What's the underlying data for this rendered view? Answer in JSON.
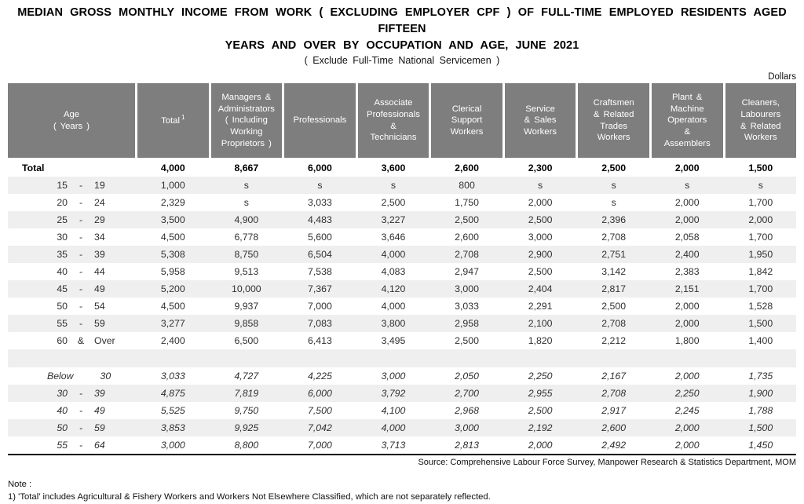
{
  "title": {
    "line1": "MEDIAN GROSS MONTHLY INCOME FROM WORK ( EXCLUDING EMPLOYER CPF ) OF FULL-TIME EMPLOYED RESIDENTS AGED FIFTEEN",
    "line2": "YEARS AND OVER BY OCCUPATION AND AGE, JUNE 2021",
    "subtitle": "( Exclude Full-Time National Servicemen )",
    "unit": "Dollars"
  },
  "table": {
    "columns": [
      {
        "label": "Age\n( Years )"
      },
      {
        "label": "Total",
        "sup": "1"
      },
      {
        "label": "Managers &\nAdministrators\n( Including\nWorking\nProprietors )"
      },
      {
        "label": "Professionals"
      },
      {
        "label": "Associate\nProfessionals\n&\nTechnicians"
      },
      {
        "label": "Clerical\nSupport\nWorkers"
      },
      {
        "label": "Service\n& Sales\nWorkers"
      },
      {
        "label": "Craftsmen\n& Related\nTrades\nWorkers"
      },
      {
        "label": "Plant &\nMachine\nOperators\n&\nAssemblers"
      },
      {
        "label": "Cleaners,\nLabourers\n& Related\nWorkers"
      }
    ],
    "rows": [
      {
        "style": "total",
        "from": "Total",
        "sep": "",
        "to": "",
        "values": [
          "4,000",
          "8,667",
          "6,000",
          "3,600",
          "2,600",
          "2,300",
          "2,500",
          "2,000",
          "1,500"
        ]
      },
      {
        "style": "normal",
        "from": "15",
        "sep": "-",
        "to": "19",
        "values": [
          "1,000",
          "s",
          "s",
          "s",
          "800",
          "s",
          "s",
          "s",
          "s"
        ]
      },
      {
        "style": "normal",
        "from": "20",
        "sep": "-",
        "to": "24",
        "values": [
          "2,329",
          "s",
          "3,033",
          "2,500",
          "1,750",
          "2,000",
          "s",
          "2,000",
          "1,700"
        ]
      },
      {
        "style": "normal",
        "from": "25",
        "sep": "-",
        "to": "29",
        "values": [
          "3,500",
          "4,900",
          "4,483",
          "3,227",
          "2,500",
          "2,500",
          "2,396",
          "2,000",
          "2,000"
        ]
      },
      {
        "style": "normal",
        "from": "30",
        "sep": "-",
        "to": "34",
        "values": [
          "4,500",
          "6,778",
          "5,600",
          "3,646",
          "2,600",
          "3,000",
          "2,708",
          "2,058",
          "1,700"
        ]
      },
      {
        "style": "normal",
        "from": "35",
        "sep": "-",
        "to": "39",
        "values": [
          "5,308",
          "8,750",
          "6,504",
          "4,000",
          "2,708",
          "2,900",
          "2,751",
          "2,400",
          "1,950"
        ]
      },
      {
        "style": "normal",
        "from": "40",
        "sep": "-",
        "to": "44",
        "values": [
          "5,958",
          "9,513",
          "7,538",
          "4,083",
          "2,947",
          "2,500",
          "3,142",
          "2,383",
          "1,842"
        ]
      },
      {
        "style": "normal",
        "from": "45",
        "sep": "-",
        "to": "49",
        "values": [
          "5,200",
          "10,000",
          "7,367",
          "4,120",
          "3,000",
          "2,404",
          "2,817",
          "2,151",
          "1,700"
        ]
      },
      {
        "style": "normal",
        "from": "50",
        "sep": "-",
        "to": "54",
        "values": [
          "4,500",
          "9,937",
          "7,000",
          "4,000",
          "3,033",
          "2,291",
          "2,500",
          "2,000",
          "1,528"
        ]
      },
      {
        "style": "normal",
        "from": "55",
        "sep": "-",
        "to": "59",
        "values": [
          "3,277",
          "9,858",
          "7,083",
          "3,800",
          "2,958",
          "2,100",
          "2,708",
          "2,000",
          "1,500"
        ]
      },
      {
        "style": "normal",
        "from": "60",
        "sep": "&",
        "to": "Over",
        "values": [
          "2,400",
          "6,500",
          "6,413",
          "3,495",
          "2,500",
          "1,820",
          "2,212",
          "1,800",
          "1,400"
        ]
      },
      {
        "style": "spacer",
        "from": "",
        "sep": "",
        "to": "",
        "values": []
      },
      {
        "style": "summary",
        "from": "Below",
        "sep": "",
        "to": "30",
        "values": [
          "3,033",
          "4,727",
          "4,225",
          "3,000",
          "2,050",
          "2,250",
          "2,167",
          "2,000",
          "1,735"
        ]
      },
      {
        "style": "summary",
        "from": "30",
        "sep": "-",
        "to": "39",
        "values": [
          "4,875",
          "7,819",
          "6,000",
          "3,792",
          "2,700",
          "2,955",
          "2,708",
          "2,250",
          "1,900"
        ]
      },
      {
        "style": "summary",
        "from": "40",
        "sep": "-",
        "to": "49",
        "values": [
          "5,525",
          "9,750",
          "7,500",
          "4,100",
          "2,968",
          "2,500",
          "2,917",
          "2,245",
          "1,788"
        ]
      },
      {
        "style": "summary",
        "from": "50",
        "sep": "-",
        "to": "59",
        "values": [
          "3,853",
          "9,925",
          "7,042",
          "4,000",
          "3,000",
          "2,192",
          "2,600",
          "2,000",
          "1,500"
        ]
      },
      {
        "style": "summary",
        "from": "55",
        "sep": "-",
        "to": "64",
        "values": [
          "3,000",
          "8,800",
          "7,000",
          "3,713",
          "2,813",
          "2,000",
          "2,492",
          "2,000",
          "1,450"
        ]
      }
    ]
  },
  "source": "Source:  Comprehensive Labour Force Survey, Manpower Research & Statistics Department, MOM",
  "note": {
    "label": "Note :",
    "item1": "1) 'Total' includes Agricultural & Fishery Workers and Workers Not Elsewhere Classified, which are not separately reflected."
  }
}
